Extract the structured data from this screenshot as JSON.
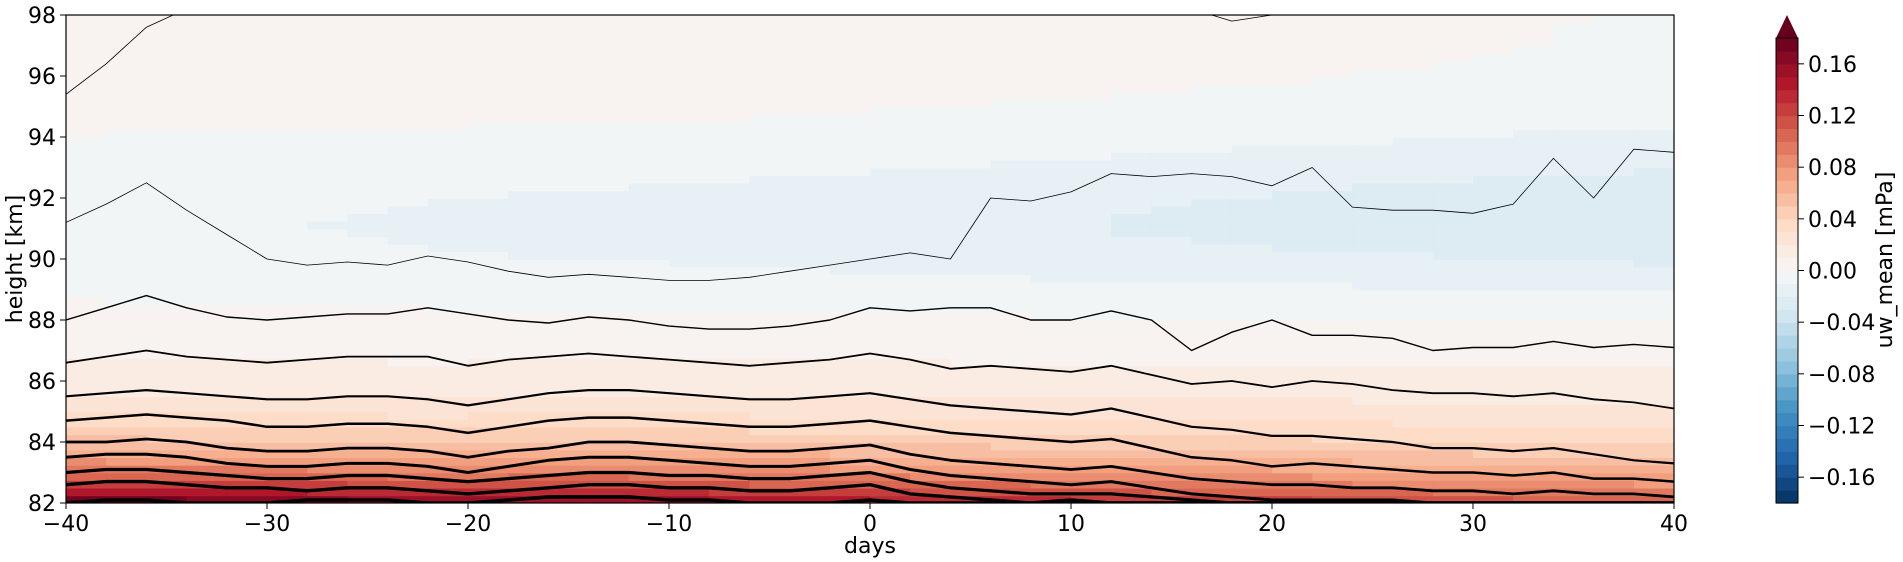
{
  "chart_data": {
    "type": "heatmap",
    "xlabel": "days",
    "ylabel": "height [km]",
    "xlim": [
      -40,
      40
    ],
    "ylim": [
      82,
      98
    ],
    "xticks": [
      -40,
      -30,
      -20,
      -10,
      0,
      10,
      20,
      30,
      40
    ],
    "yticks": [
      82,
      84,
      86,
      88,
      90,
      92,
      94,
      96,
      98
    ],
    "colorbar": {
      "label": "uw_mean [mPa]",
      "range": [
        -0.18,
        0.18
      ],
      "ticks": [
        "0.16",
        "0.12",
        "0.08",
        "0.04",
        "0.00",
        "−0.04",
        "−0.08",
        "−0.12",
        "−0.16"
      ],
      "extend": "max",
      "colormap": "RdBu_r"
    },
    "grid": false,
    "contour_lines_approx": [
      {
        "name": "h97",
        "width": 0.8,
        "x": [
          -40,
          -38,
          -36,
          -34,
          -32,
          -30,
          -28,
          -26,
          -24,
          -22,
          -20,
          -18,
          -16,
          -14,
          -12,
          -10,
          -8,
          -6,
          -4,
          -2,
          0,
          2,
          4,
          6,
          8,
          10,
          12,
          14,
          16,
          18,
          20,
          22,
          24,
          26,
          28,
          30,
          32,
          34,
          36,
          38,
          40
        ],
        "y": [
          95.4,
          96.4,
          97.6,
          98.2,
          98.3,
          98.2,
          98.3,
          98.4,
          98.4,
          98.4,
          98.4,
          98.4,
          98.4,
          98.4,
          98.4,
          98.4,
          98.4,
          98.4,
          98.4,
          98.4,
          98.4,
          98.4,
          98.4,
          98.4,
          98.4,
          98.4,
          98.4,
          98.4,
          98.2,
          97.8,
          98.0,
          98.4,
          98.4,
          98.4,
          98.4,
          98.4,
          98.4,
          98.4,
          98.4,
          98.4,
          98.4
        ]
      },
      {
        "name": "h92",
        "width": 0.8,
        "x": [
          -40,
          -38,
          -36,
          -34,
          -32,
          -30,
          -28,
          -26,
          -24,
          -22,
          -20,
          -18,
          -16,
          -14,
          -12,
          -10,
          -8,
          -6,
          -4,
          -2,
          0,
          2,
          4,
          6,
          8,
          10,
          12,
          14,
          16,
          18,
          20,
          22,
          24,
          26,
          28,
          30,
          32,
          34,
          36,
          38,
          40
        ],
        "y": [
          91.2,
          91.8,
          92.5,
          91.6,
          90.8,
          90.0,
          89.8,
          89.9,
          89.8,
          90.1,
          89.9,
          89.6,
          89.4,
          89.5,
          89.4,
          89.3,
          89.3,
          89.4,
          89.6,
          89.8,
          90.0,
          90.2,
          90.0,
          92.0,
          91.9,
          92.2,
          92.8,
          92.7,
          92.8,
          92.7,
          92.4,
          93.0,
          91.7,
          91.6,
          91.6,
          91.5,
          91.8,
          93.3,
          92.0,
          93.6,
          93.5
        ]
      },
      {
        "name": "h895",
        "width": 1.4,
        "x": [
          -40,
          -38,
          -36,
          -34,
          -32,
          -30,
          -28,
          -26,
          -24,
          -22,
          -20,
          -18,
          -16,
          -14,
          -12,
          -10,
          -8,
          -6,
          -4,
          -2,
          0,
          2,
          4,
          6,
          8,
          10,
          12,
          14,
          16,
          18,
          20,
          22,
          24,
          26,
          28,
          30,
          32,
          34,
          36,
          38,
          40
        ],
        "y": [
          88.0,
          88.4,
          88.8,
          88.4,
          88.1,
          88.0,
          88.1,
          88.2,
          88.2,
          88.4,
          88.2,
          88.0,
          87.9,
          88.1,
          88.0,
          87.8,
          87.7,
          87.7,
          87.8,
          88.0,
          88.4,
          88.3,
          88.4,
          88.4,
          88.0,
          88.0,
          88.3,
          88.0,
          87.0,
          87.6,
          88.0,
          87.5,
          87.5,
          87.4,
          87.0,
          87.1,
          87.1,
          87.3,
          87.1,
          87.2,
          87.1
        ]
      },
      {
        "name": "h87",
        "width": 1.8,
        "x": [
          -40,
          -38,
          -36,
          -34,
          -32,
          -30,
          -28,
          -26,
          -24,
          -22,
          -20,
          -18,
          -16,
          -14,
          -12,
          -10,
          -8,
          -6,
          -4,
          -2,
          0,
          2,
          4,
          6,
          8,
          10,
          12,
          14,
          16,
          18,
          20,
          22,
          24,
          26,
          28,
          30,
          32,
          34,
          36,
          38,
          40
        ],
        "y": [
          86.6,
          86.8,
          87.0,
          86.8,
          86.7,
          86.6,
          86.7,
          86.8,
          86.8,
          86.8,
          86.5,
          86.7,
          86.8,
          86.9,
          86.8,
          86.7,
          86.6,
          86.5,
          86.6,
          86.7,
          86.9,
          86.7,
          86.4,
          86.5,
          86.4,
          86.3,
          86.5,
          86.2,
          85.9,
          86.0,
          85.8,
          86.0,
          85.9,
          85.7,
          85.6,
          85.6,
          85.5,
          85.6,
          85.4,
          85.3,
          85.1
        ]
      },
      {
        "name": "h855",
        "width": 2.2,
        "x": [
          -40,
          -38,
          -36,
          -34,
          -32,
          -30,
          -28,
          -26,
          -24,
          -22,
          -20,
          -18,
          -16,
          -14,
          -12,
          -10,
          -8,
          -6,
          -4,
          -2,
          0,
          2,
          4,
          6,
          8,
          10,
          12,
          14,
          16,
          18,
          20,
          22,
          24,
          26,
          28,
          30,
          32,
          34,
          36,
          38,
          40
        ],
        "y": [
          85.5,
          85.6,
          85.7,
          85.6,
          85.5,
          85.4,
          85.4,
          85.5,
          85.5,
          85.4,
          85.2,
          85.4,
          85.6,
          85.7,
          85.7,
          85.6,
          85.5,
          85.4,
          85.4,
          85.5,
          85.6,
          85.4,
          85.2,
          85.1,
          85.0,
          84.9,
          85.1,
          84.8,
          84.5,
          84.4,
          84.2,
          84.2,
          84.1,
          84.0,
          83.8,
          83.8,
          83.7,
          83.8,
          83.6,
          83.4,
          83.3
        ]
      },
      {
        "name": "h845",
        "width": 2.5,
        "x": [
          -40,
          -38,
          -36,
          -34,
          -32,
          -30,
          -28,
          -26,
          -24,
          -22,
          -20,
          -18,
          -16,
          -14,
          -12,
          -10,
          -8,
          -6,
          -4,
          -2,
          0,
          2,
          4,
          6,
          8,
          10,
          12,
          14,
          16,
          18,
          20,
          22,
          24,
          26,
          28,
          30,
          32,
          34,
          36,
          38,
          40
        ],
        "y": [
          84.7,
          84.8,
          84.9,
          84.8,
          84.7,
          84.5,
          84.5,
          84.6,
          84.6,
          84.5,
          84.3,
          84.5,
          84.7,
          84.8,
          84.8,
          84.7,
          84.6,
          84.5,
          84.5,
          84.6,
          84.7,
          84.5,
          84.3,
          84.2,
          84.1,
          84.0,
          84.1,
          83.8,
          83.5,
          83.4,
          83.2,
          83.3,
          83.2,
          83.1,
          83.0,
          83.0,
          82.9,
          83.0,
          82.8,
          82.8,
          82.7
        ]
      },
      {
        "name": "h84",
        "width": 2.8,
        "x": [
          -40,
          -38,
          -36,
          -34,
          -32,
          -30,
          -28,
          -26,
          -24,
          -22,
          -20,
          -18,
          -16,
          -14,
          -12,
          -10,
          -8,
          -6,
          -4,
          -2,
          0,
          2,
          4,
          6,
          8,
          10,
          12,
          14,
          16,
          18,
          20,
          22,
          24,
          26,
          28,
          30,
          32,
          34,
          36,
          38,
          40
        ],
        "y": [
          84.0,
          84.0,
          84.1,
          84.0,
          83.8,
          83.7,
          83.7,
          83.8,
          83.8,
          83.7,
          83.5,
          83.7,
          83.8,
          84.0,
          84.0,
          83.9,
          83.8,
          83.7,
          83.7,
          83.8,
          83.9,
          83.6,
          83.4,
          83.3,
          83.2,
          83.1,
          83.2,
          83.0,
          82.8,
          82.7,
          82.6,
          82.6,
          82.5,
          82.5,
          82.4,
          82.4,
          82.3,
          82.4,
          82.3,
          82.3,
          82.2
        ]
      },
      {
        "name": "h835",
        "width": 3.0,
        "x": [
          -40,
          -38,
          -36,
          -34,
          -32,
          -30,
          -28,
          -26,
          -24,
          -22,
          -20,
          -18,
          -16,
          -14,
          -12,
          -10,
          -8,
          -6,
          -4,
          -2,
          0,
          2,
          4,
          6,
          8,
          10,
          12,
          14,
          16,
          18,
          20,
          22,
          24,
          26,
          28,
          30,
          32,
          34,
          36,
          38,
          40
        ],
        "y": [
          83.5,
          83.6,
          83.6,
          83.5,
          83.3,
          83.2,
          83.2,
          83.3,
          83.3,
          83.2,
          83.0,
          83.2,
          83.4,
          83.5,
          83.5,
          83.4,
          83.3,
          83.2,
          83.2,
          83.3,
          83.4,
          83.1,
          82.9,
          82.8,
          82.7,
          82.6,
          82.7,
          82.5,
          82.3,
          82.2,
          82.1,
          82.1,
          82.1,
          82.1,
          82.0,
          82.0,
          82.0,
          82.0,
          82.0,
          82.0,
          82.0
        ]
      },
      {
        "name": "h83",
        "width": 3.2,
        "x": [
          -40,
          -38,
          -36,
          -34,
          -32,
          -30,
          -28,
          -26,
          -24,
          -22,
          -20,
          -18,
          -16,
          -14,
          -12,
          -10,
          -8,
          -6,
          -4,
          -2,
          0,
          2,
          4,
          6,
          8,
          10,
          12,
          14,
          16,
          18,
          20,
          22,
          24,
          26,
          28,
          30,
          32,
          34,
          36,
          38,
          40
        ],
        "y": [
          83.0,
          83.1,
          83.1,
          83.0,
          82.9,
          82.8,
          82.8,
          82.9,
          82.9,
          82.8,
          82.7,
          82.8,
          82.9,
          83.0,
          83.0,
          82.9,
          82.9,
          82.8,
          82.8,
          82.9,
          83.0,
          82.7,
          82.5,
          82.4,
          82.3,
          82.3,
          82.3,
          82.2,
          82.1,
          82.0,
          82.0,
          82.0,
          82.0,
          82.0,
          82.0,
          82.0,
          82.0,
          82.0,
          82.0,
          82.0,
          82.0
        ]
      },
      {
        "name": "h825",
        "width": 3.4,
        "x": [
          -40,
          -38,
          -36,
          -34,
          -32,
          -30,
          -28,
          -26,
          -24,
          -22,
          -20,
          -18,
          -16,
          -14,
          -12,
          -10,
          -8,
          -6,
          -4,
          -2,
          0,
          2,
          4,
          6,
          8,
          10,
          12,
          14,
          16,
          18,
          20,
          22,
          24,
          26,
          28,
          30,
          32,
          34,
          36,
          38,
          40
        ],
        "y": [
          82.6,
          82.7,
          82.7,
          82.6,
          82.5,
          82.5,
          82.4,
          82.5,
          82.5,
          82.4,
          82.3,
          82.4,
          82.5,
          82.6,
          82.6,
          82.5,
          82.5,
          82.4,
          82.4,
          82.5,
          82.6,
          82.3,
          82.2,
          82.1,
          82.0,
          82.0,
          82.0,
          82.0,
          82.0,
          82.0,
          82.0,
          82.0,
          82.0,
          82.0,
          82.0,
          82.0,
          82.0,
          82.0,
          82.0,
          82.0,
          82.0
        ]
      },
      {
        "name": "h821",
        "width": 3.6,
        "x": [
          -40,
          -38,
          -36,
          -34,
          -32,
          -30,
          -28,
          -26,
          -24,
          -22,
          -20,
          -18,
          -16,
          -14,
          -12,
          -10,
          -8,
          -6,
          -4,
          -2,
          0,
          2,
          4,
          6,
          8,
          10,
          12,
          14,
          16,
          18,
          20,
          22,
          24,
          26,
          28,
          30,
          32,
          34,
          36,
          38,
          40
        ],
        "y": [
          82.0,
          82.1,
          82.1,
          82.0,
          82.0,
          82.0,
          82.1,
          82.1,
          82.1,
          82.0,
          82.0,
          82.1,
          82.2,
          82.2,
          82.2,
          82.1,
          82.1,
          82.0,
          82.0,
          82.0,
          82.1,
          82.0,
          82.0,
          82.0,
          82.0,
          82.1,
          82.0,
          82.0,
          82.0,
          82.0,
          82.0,
          82.0,
          82.0,
          82.0,
          82.0,
          82.0,
          82.0,
          82.0,
          82.0,
          82.0,
          82.0
        ]
      }
    ]
  }
}
